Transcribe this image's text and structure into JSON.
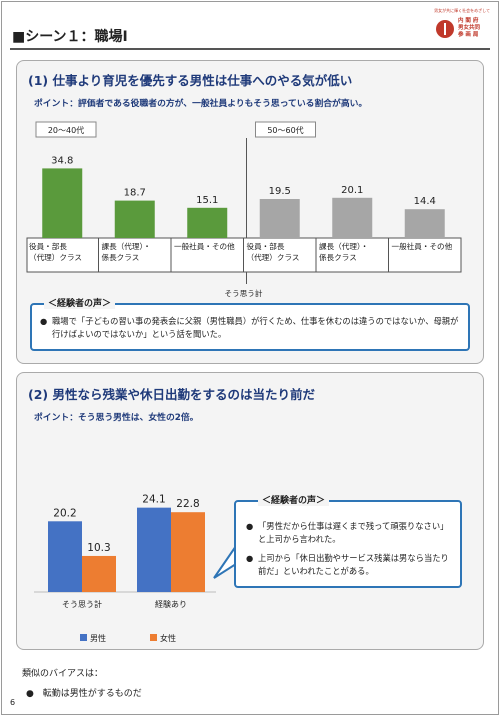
{
  "header": {
    "title": "■シーン１：職場Ⅰ",
    "logo_tagline": "男女が共に輝く社会をめざして",
    "logo_text": "内 閣 府\n男女共同\n参 画 局"
  },
  "section1": {
    "title": "(1) 仕事より育児を優先する男性は仕事へのやる気が低い",
    "point": "ポイント：評価者である役職者の方が、一般社員よりもそう思っている割合が高い。",
    "voice_label": "＜経験者の声＞",
    "voice_items": [
      "職場で「子どもの習い事の発表会に父親（男性職員）が行くため、仕事を休むのは違うのではないか、母親が行けばよいのではないか」という話を聞いた。"
    ]
  },
  "section2": {
    "title": "(2) 男性なら残業や休日出勤をするのは当たり前だ",
    "point": "ポイント：そう思う男性は、女性の2倍。",
    "voice_label": "＜経験者の声＞",
    "voice_items": [
      "「男性だから仕事は遅くまで残って頑張りなさい」と上司から言われた。",
      "上司から「休日出勤やサービス残業は男なら当たり前だ」といわれたことがある。"
    ]
  },
  "bias": {
    "heading": "類似のバイアスは：",
    "items": [
      "転勤は男性がするものだ"
    ]
  },
  "page_number": "6",
  "chart_data": [
    {
      "type": "bar",
      "groups": [
        {
          "label": "20～40代",
          "categories": [
            "役員・部長\n（代理）クラス",
            "課長（代理）・\n係長クラス",
            "一般社員・その他"
          ],
          "values": [
            34.8,
            18.7,
            15.1
          ],
          "color": "#5a9a3c"
        },
        {
          "label": "50～60代",
          "categories": [
            "役員・部長\n（代理）クラス",
            "課長（代理）・\n係長クラス",
            "一般社員・その他"
          ],
          "values": [
            19.5,
            20.1,
            14.4
          ],
          "color": "#a6a6a6"
        }
      ],
      "xlabel": "そう思う計",
      "ylim": [
        0,
        40
      ]
    },
    {
      "type": "bar",
      "categories": [
        "そう思う計",
        "経験あり"
      ],
      "series": [
        {
          "name": "男性",
          "values": [
            20.2,
            24.1
          ],
          "color": "#4472c4"
        },
        {
          "name": "女性",
          "values": [
            10.3,
            22.8
          ],
          "color": "#ed7d31"
        }
      ],
      "legend": "bottom",
      "ylim": [
        0,
        30
      ]
    }
  ]
}
